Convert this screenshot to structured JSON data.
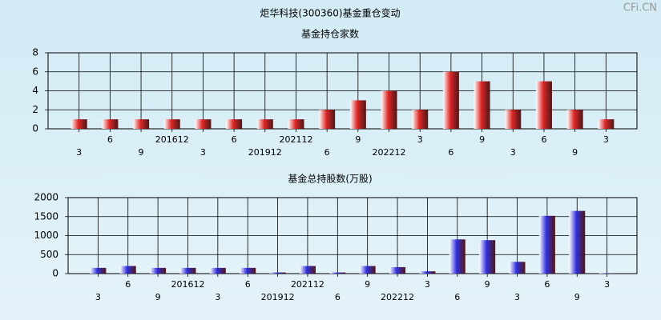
{
  "title": "炬华科技(300360)基金重仓变动",
  "watermark": "CFi.CN",
  "chart_data": [
    {
      "type": "bar",
      "title": "基金持仓家数",
      "categories": [
        "3",
        "6",
        "9",
        "201612",
        "3",
        "6",
        "201912",
        "202112",
        "6",
        "9",
        "202212",
        "3",
        "6",
        "9",
        "3",
        "6",
        "9",
        "3"
      ],
      "values": [
        1,
        1,
        1,
        1,
        1,
        1,
        1,
        1,
        2,
        3,
        4,
        2,
        6,
        5,
        2,
        5,
        2,
        1
      ],
      "color": "#e02828",
      "ylim": [
        0,
        8
      ],
      "yticks": [
        0,
        2,
        4,
        6,
        8
      ],
      "grid": true
    },
    {
      "type": "bar",
      "title": "基金总持股数(万股)",
      "categories": [
        "3",
        "6",
        "9",
        "201612",
        "3",
        "6",
        "201912",
        "202112",
        "6",
        "9",
        "202212",
        "3",
        "6",
        "9",
        "3",
        "6",
        "9",
        "3"
      ],
      "values": [
        150,
        200,
        150,
        150,
        150,
        150,
        30,
        200,
        30,
        200,
        170,
        60,
        900,
        880,
        310,
        1520,
        1650,
        10
      ],
      "color": "#3030e0",
      "ylim": [
        0,
        2000
      ],
      "yticks": [
        0,
        500,
        1000,
        1500,
        2000
      ],
      "grid": true
    }
  ]
}
